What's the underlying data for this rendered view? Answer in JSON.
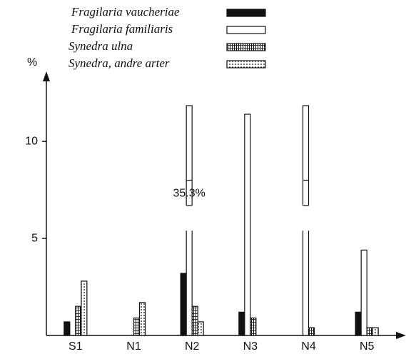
{
  "chart_data": {
    "type": "bar",
    "y_label": "%",
    "categories": [
      "S1",
      "N1",
      "N2",
      "N3",
      "N4",
      "N5"
    ],
    "series": [
      {
        "name": "Fragilaria vaucheriae",
        "color": "#111111",
        "pattern": "solid",
        "values": [
          0.7,
          0,
          3.2,
          1.2,
          0,
          1.2
        ]
      },
      {
        "name": "Fragilaria familiaris",
        "color": "#ffffff",
        "pattern": "solid",
        "values": [
          0,
          0,
          35.3,
          11.4,
          12.1,
          4.4
        ],
        "value_labels": [
          null,
          null,
          "35.3%",
          null,
          null,
          null
        ]
      },
      {
        "name": "Synedra ulna",
        "color": "#ffffff",
        "pattern": "vstripes",
        "values": [
          1.5,
          0.9,
          1.5,
          0.9,
          0.4,
          0.4
        ]
      },
      {
        "name": "Synedra, andre arter",
        "color": "#ffffff",
        "pattern": "dots",
        "values": [
          2.8,
          1.7,
          0.7,
          0,
          0,
          0.4
        ]
      }
    ],
    "ylim": [
      0,
      12.8
    ],
    "yticks": [
      5,
      10
    ],
    "legend": "top"
  }
}
